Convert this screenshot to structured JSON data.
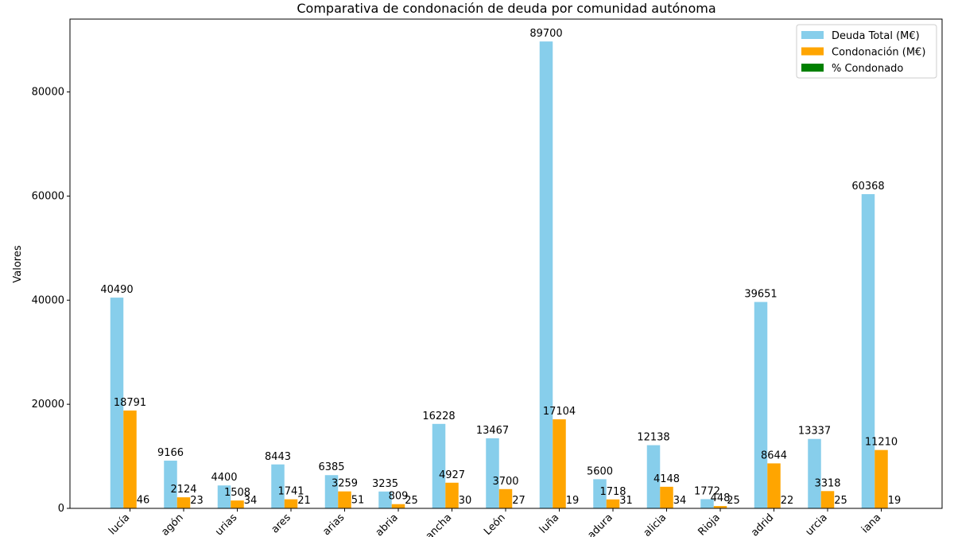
{
  "chart_data": {
    "type": "bar",
    "title": "Comparativa de condonación de deuda por comunidad autónoma",
    "xlabel": "",
    "ylabel": "Valores",
    "ylim": [
      0,
      94000
    ],
    "yticks": [
      0,
      20000,
      40000,
      60000,
      80000
    ],
    "categories": [
      "lucía",
      "agón",
      "urias",
      "ares",
      "arias",
      "abria",
      "ancha",
      "León",
      "luña",
      "adura",
      "alicia",
      "Rioja",
      "adrid",
      "urcia",
      "iana"
    ],
    "series": [
      {
        "name": "Deuda Total (M€)",
        "color": "#87ceeb",
        "values": [
          40490,
          9166,
          4400,
          8443,
          6385,
          3235,
          16228,
          13467,
          89700,
          5600,
          12138,
          1772,
          39651,
          13337,
          60368
        ]
      },
      {
        "name": "Condonación (M€)",
        "color": "#ffa500",
        "values": [
          18791,
          2124,
          1508,
          1741,
          3259,
          809,
          4927,
          3700,
          17104,
          1718,
          4148,
          448,
          8644,
          3318,
          11210
        ]
      },
      {
        "name": "% Condonado",
        "color": "#008000",
        "values": [
          46,
          23,
          34,
          21,
          51,
          25,
          30,
          27,
          19,
          31,
          34,
          25,
          22,
          25,
          19
        ]
      }
    ],
    "legend_position": "top-right",
    "grid": false
  }
}
